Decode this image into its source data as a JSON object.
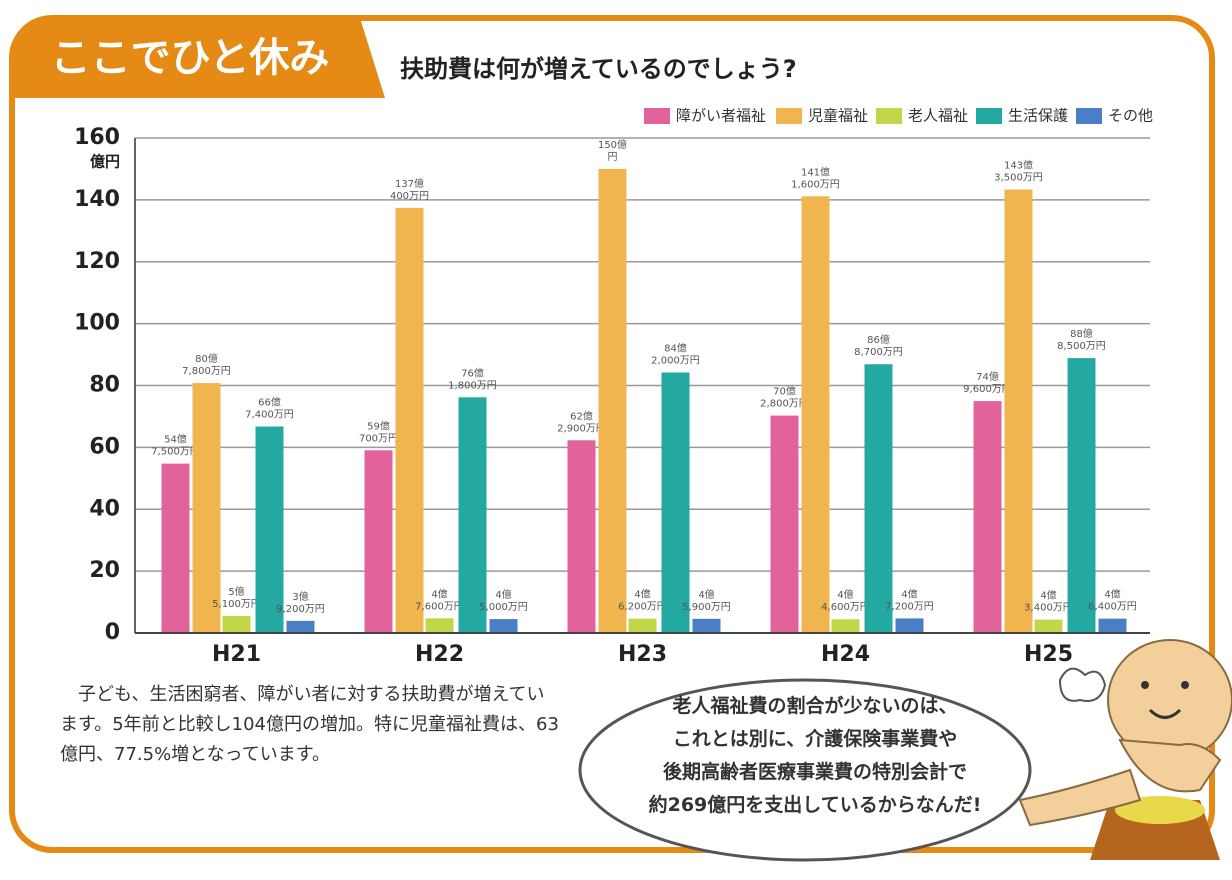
{
  "badge": "ここでひと休み",
  "chart_data": {
    "type": "bar",
    "title": "扶助費は何が増えているのでしょう?",
    "y_unit": "億円",
    "categories": [
      "H21",
      "H22",
      "H23",
      "H24",
      "H25"
    ],
    "series": [
      {
        "name": "障がい者福祉",
        "color": "#e2639c",
        "values": [
          54.75,
          59.07,
          62.29,
          70.28,
          74.96
        ],
        "value_labels": [
          "54億7,500万円",
          "59億700万円",
          "62億2,900万円",
          "70億2,800万円",
          "74億9,600万円"
        ]
      },
      {
        "name": "児童福祉",
        "color": "#f0b54e",
        "values": [
          80.78,
          137.4,
          150,
          141.16,
          143.35
        ],
        "value_labels": [
          "80億7,800万円",
          "137億400万円",
          "150億円",
          "141億1,600万円",
          "143億3,500万円"
        ]
      },
      {
        "name": "老人福祉",
        "color": "#c3d64a",
        "values": [
          5.51,
          4.76,
          4.62,
          4.46,
          4.34
        ],
        "value_labels": [
          "5億5,100万円",
          "4億7,600万円",
          "4億6,200万円",
          "4億4,600万円",
          "4億3,400万円"
        ]
      },
      {
        "name": "生活保護",
        "color": "#23a8a2",
        "values": [
          66.74,
          76.18,
          84.2,
          86.87,
          88.85
        ],
        "value_labels": [
          "66億7,400万円",
          "76億1,800万円",
          "84億2,000万円",
          "86億8,700万円",
          "88億8,500万円"
        ]
      },
      {
        "name": "その他",
        "color": "#4a7fc6",
        "values": [
          3.92,
          4.5,
          4.59,
          4.72,
          4.64
        ],
        "value_labels": [
          "3億9,200万円",
          "4億5,000万円",
          "4億5,900万円",
          "4億7,200万円",
          "4億6,400万円"
        ]
      }
    ],
    "ylim": [
      0,
      160
    ],
    "yticks": [
      0,
      20,
      40,
      60,
      80,
      100,
      120,
      140,
      160
    ],
    "grid": true,
    "legend": "top-right"
  },
  "note": "子ども、生活困窮者、障がい者に対する扶助費が増えています。5年前と比較し104億円の増加。特に児童福祉費は、63億円、77.5%増となっています。",
  "bubble": {
    "lines": [
      "老人福祉費の割合が少ないのは、",
      "これとは別に、介護保険事業費や",
      "後期高齢者医療事業費の特別会計で",
      "約269億円を支出しているからなんだ!"
    ]
  }
}
